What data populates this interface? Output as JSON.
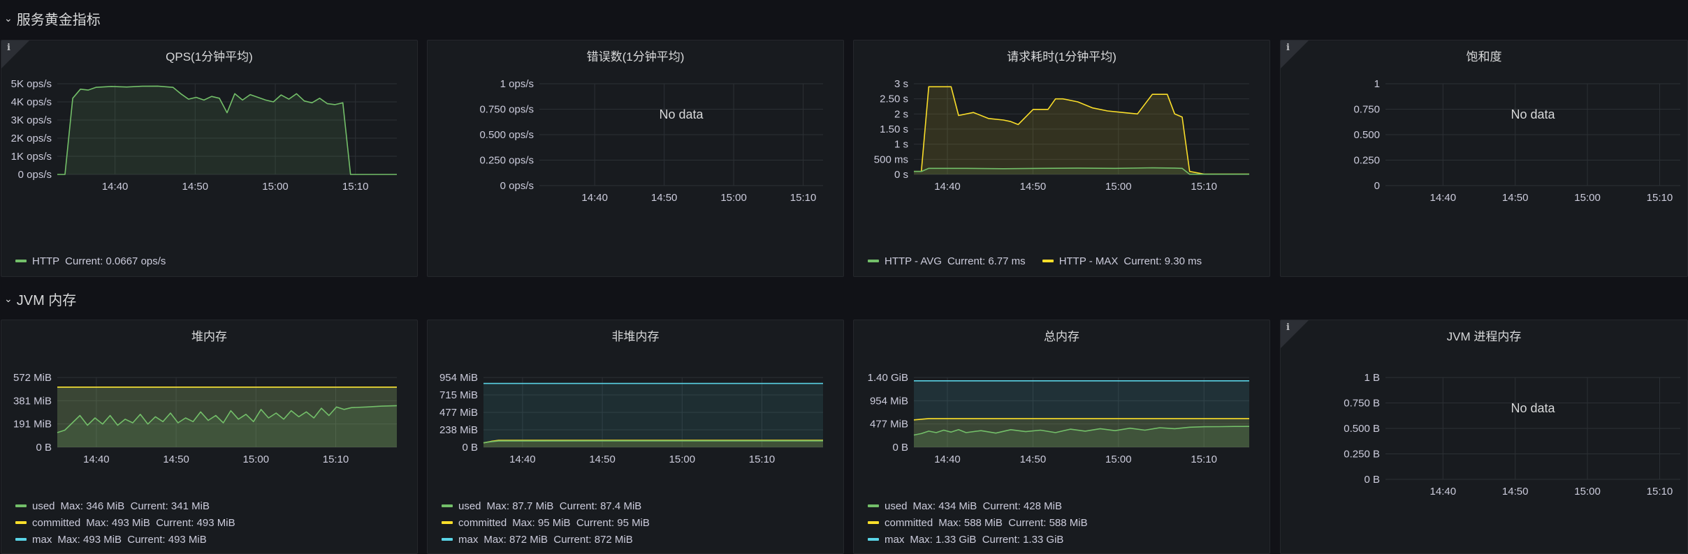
{
  "rows": [
    {
      "title": "服务黄金指标"
    },
    {
      "title": "JVM 内存"
    }
  ],
  "info_icon": "i",
  "panels": [
    {
      "title": "QPS(1分钟平均)",
      "info": true,
      "y_ticks": [
        "5K ops/s",
        "4K ops/s",
        "3K ops/s",
        "2K ops/s",
        "1K ops/s",
        "0 ops/s"
      ],
      "x_ticks": [
        "14:40",
        "14:50",
        "15:00",
        "15:10"
      ],
      "legend": [
        {
          "name": "HTTP",
          "stats": "Current: 0.0667 ops/s",
          "color": "#73bf69"
        }
      ]
    },
    {
      "title": "错误数(1分钟平均)",
      "info": false,
      "y_ticks": [
        "1 ops/s",
        "0.750 ops/s",
        "0.500 ops/s",
        "0.250 ops/s",
        "0 ops/s"
      ],
      "x_ticks": [
        "14:40",
        "14:50",
        "15:00",
        "15:10"
      ],
      "no_data": "No data",
      "legend": []
    },
    {
      "title": "请求耗时(1分钟平均)",
      "info": false,
      "y_ticks": [
        "3 s",
        "2.50 s",
        "2 s",
        "1.50 s",
        "1 s",
        "500 ms",
        "0 s"
      ],
      "x_ticks": [
        "14:40",
        "14:50",
        "15:00",
        "15:10"
      ],
      "legend": [
        {
          "name": "HTTP - AVG",
          "stats": "Current: 6.77 ms",
          "color": "#73bf69"
        },
        {
          "name": "HTTP - MAX",
          "stats": "Current: 9.30 ms",
          "color": "#fade2a"
        }
      ]
    },
    {
      "title": "饱和度",
      "info": true,
      "y_ticks": [
        "1",
        "0.750",
        "0.500",
        "0.250",
        "0"
      ],
      "x_ticks": [
        "14:40",
        "14:50",
        "15:00",
        "15:10"
      ],
      "no_data": "No data",
      "legend": []
    },
    {
      "title": "堆内存",
      "info": false,
      "y_ticks": [
        "572 MiB",
        "381 MiB",
        "191 MiB",
        "0 B"
      ],
      "x_ticks": [
        "14:40",
        "14:50",
        "15:00",
        "15:10"
      ],
      "legend": [
        {
          "name": "used",
          "stats": "Max: 346 MiB  Current: 341 MiB",
          "color": "#73bf69"
        },
        {
          "name": "committed",
          "stats": "Max: 493 MiB  Current: 493 MiB",
          "color": "#fade2a"
        },
        {
          "name": "max",
          "stats": "Max: 493 MiB  Current: 493 MiB",
          "color": "#5ad4e6"
        }
      ]
    },
    {
      "title": "非堆内存",
      "info": false,
      "y_ticks": [
        "954 MiB",
        "715 MiB",
        "477 MiB",
        "238 MiB",
        "0 B"
      ],
      "x_ticks": [
        "14:40",
        "14:50",
        "15:00",
        "15:10"
      ],
      "legend": [
        {
          "name": "used",
          "stats": "Max: 87.7 MiB  Current: 87.4 MiB",
          "color": "#73bf69"
        },
        {
          "name": "committed",
          "stats": "Max: 95 MiB  Current: 95 MiB",
          "color": "#fade2a"
        },
        {
          "name": "max",
          "stats": "Max: 872 MiB  Current: 872 MiB",
          "color": "#5ad4e6"
        }
      ]
    },
    {
      "title": "总内存",
      "info": false,
      "y_ticks": [
        "1.40 GiB",
        "954 MiB",
        "477 MiB",
        "0 B"
      ],
      "x_ticks": [
        "14:40",
        "14:50",
        "15:00",
        "15:10"
      ],
      "legend": [
        {
          "name": "used",
          "stats": "Max: 434 MiB  Current: 428 MiB",
          "color": "#73bf69"
        },
        {
          "name": "committed",
          "stats": "Max: 588 MiB  Current: 588 MiB",
          "color": "#fade2a"
        },
        {
          "name": "max",
          "stats": "Max: 1.33 GiB  Current: 1.33 GiB",
          "color": "#5ad4e6"
        }
      ]
    },
    {
      "title": "JVM 进程内存",
      "info": true,
      "y_ticks": [
        "1 B",
        "0.750 B",
        "0.500 B",
        "0.250 B",
        "0 B"
      ],
      "x_ticks": [
        "14:40",
        "14:50",
        "15:00",
        "15:10"
      ],
      "no_data": "No data",
      "legend": []
    }
  ],
  "chart_data": [
    {
      "type": "area",
      "title": "QPS(1分钟平均)",
      "x_range": [
        "14:32",
        "15:16"
      ],
      "ylim": [
        0,
        5000
      ],
      "y_unit": "ops/s",
      "series": [
        {
          "name": "HTTP",
          "color": "#73bf69",
          "x": [
            "14:32",
            "14:33",
            "14:34",
            "14:35",
            "14:36",
            "14:37",
            "14:39",
            "14:41",
            "14:43",
            "14:45",
            "14:47",
            "14:48",
            "14:49",
            "14:50",
            "14:51",
            "14:52",
            "14:53",
            "14:54",
            "14:55",
            "14:56",
            "14:57",
            "14:58",
            "14:59",
            "15:00",
            "15:01",
            "15:02",
            "15:03",
            "15:04",
            "15:05",
            "15:06",
            "15:07",
            "15:08",
            "15:09",
            "15:10",
            "15:12",
            "15:14",
            "15:16"
          ],
          "values": [
            0,
            0,
            4200,
            4700,
            4650,
            4800,
            4850,
            4820,
            4860,
            4870,
            4800,
            4450,
            4150,
            4250,
            4100,
            4300,
            4200,
            3400,
            4450,
            4100,
            4400,
            4250,
            4100,
            4000,
            4380,
            4150,
            4450,
            4050,
            3950,
            4200,
            3900,
            3850,
            3950,
            0,
            0,
            0,
            0.0667
          ]
        }
      ]
    },
    {
      "type": "line",
      "title": "错误数(1分钟平均)",
      "ylim": [
        0,
        1
      ],
      "series": []
    },
    {
      "type": "area",
      "title": "请求耗时(1分钟平均)",
      "x_range": [
        "14:33",
        "15:18"
      ],
      "ylim": [
        0,
        3
      ],
      "y_unit": "s",
      "series": [
        {
          "name": "HTTP - AVG",
          "color": "#73bf69",
          "x": [
            "14:33",
            "14:34",
            "14:35",
            "14:40",
            "14:45",
            "14:50",
            "14:55",
            "15:00",
            "15:05",
            "15:08",
            "15:09",
            "15:10",
            "15:18"
          ],
          "values": [
            0.1,
            0.1,
            0.2,
            0.2,
            0.19,
            0.2,
            0.21,
            0.2,
            0.22,
            0.21,
            0.2,
            0.0068,
            0.0068
          ]
        },
        {
          "name": "HTTP - MAX",
          "color": "#fade2a",
          "x": [
            "14:33",
            "14:34",
            "14:35",
            "14:38",
            "14:39",
            "14:41",
            "14:43",
            "14:45",
            "14:46",
            "14:47",
            "14:48",
            "14:49",
            "14:51",
            "14:52",
            "14:53",
            "14:55",
            "14:57",
            "14:59",
            "15:01",
            "15:03",
            "15:05",
            "15:07",
            "15:08",
            "15:09",
            "15:10",
            "15:12",
            "15:18"
          ],
          "values": [
            0.1,
            0.1,
            2.9,
            2.9,
            1.95,
            2.05,
            1.85,
            1.8,
            1.75,
            1.65,
            1.9,
            2.15,
            2.15,
            2.5,
            2.5,
            2.4,
            2.2,
            2.1,
            2.05,
            2.0,
            2.65,
            2.65,
            2.0,
            1.9,
            0.1,
            0.0093,
            0.0093
          ]
        }
      ]
    },
    {
      "type": "line",
      "title": "饱和度",
      "ylim": [
        0,
        1
      ],
      "series": []
    },
    {
      "type": "area",
      "title": "堆内存",
      "x_range": [
        "14:33",
        "15:18"
      ],
      "ylim": [
        0,
        572
      ],
      "y_unit": "MiB",
      "series": [
        {
          "name": "used",
          "color": "#73bf69",
          "x": [
            "14:33",
            "14:34",
            "14:35",
            "14:36",
            "14:37",
            "14:38",
            "14:39",
            "14:40",
            "14:41",
            "14:42",
            "14:43",
            "14:44",
            "14:45",
            "14:46",
            "14:47",
            "14:48",
            "14:49",
            "14:50",
            "14:51",
            "14:52",
            "14:53",
            "14:54",
            "14:55",
            "14:56",
            "14:57",
            "14:58",
            "14:59",
            "15:00",
            "15:01",
            "15:02",
            "15:03",
            "15:04",
            "15:05",
            "15:06",
            "15:07",
            "15:08",
            "15:09",
            "15:10",
            "15:11",
            "15:12",
            "15:14",
            "15:16",
            "15:18"
          ],
          "values": [
            120,
            140,
            200,
            260,
            180,
            240,
            190,
            260,
            180,
            230,
            200,
            270,
            190,
            250,
            210,
            280,
            200,
            240,
            210,
            290,
            220,
            260,
            200,
            300,
            230,
            270,
            210,
            310,
            240,
            280,
            230,
            300,
            250,
            290,
            240,
            320,
            260,
            330,
            310,
            325,
            330,
            337,
            341
          ]
        },
        {
          "name": "committed",
          "color": "#fade2a",
          "x": [
            "14:33",
            "15:18"
          ],
          "values": [
            493,
            493
          ]
        },
        {
          "name": "max",
          "color": "#5ad4e6",
          "x": [
            "14:33",
            "15:18"
          ],
          "values": [
            493,
            493
          ]
        }
      ]
    },
    {
      "type": "area",
      "title": "非堆内存",
      "x_range": [
        "14:33",
        "15:18"
      ],
      "ylim": [
        0,
        954
      ],
      "y_unit": "MiB",
      "series": [
        {
          "name": "used",
          "color": "#73bf69",
          "x": [
            "14:33",
            "14:34",
            "14:35",
            "15:18"
          ],
          "values": [
            60,
            75,
            87,
            87.4
          ]
        },
        {
          "name": "committed",
          "color": "#fade2a",
          "x": [
            "14:33",
            "14:34",
            "14:35",
            "15:18"
          ],
          "values": [
            60,
            80,
            95,
            95
          ]
        },
        {
          "name": "max",
          "color": "#5ad4e6",
          "x": [
            "14:33",
            "15:18"
          ],
          "values": [
            872,
            872
          ]
        }
      ]
    },
    {
      "type": "area",
      "title": "总内存",
      "x_range": [
        "14:33",
        "15:18"
      ],
      "ylim": [
        0,
        1430
      ],
      "y_unit": "MiB",
      "series": [
        {
          "name": "used",
          "color": "#73bf69",
          "x": [
            "14:33",
            "14:34",
            "14:35",
            "14:36",
            "14:37",
            "14:38",
            "14:39",
            "14:40",
            "14:42",
            "14:44",
            "14:46",
            "14:48",
            "14:50",
            "14:52",
            "14:54",
            "14:56",
            "14:58",
            "15:00",
            "15:02",
            "15:04",
            "15:06",
            "15:08",
            "15:10",
            "15:12",
            "15:14",
            "15:16",
            "15:18"
          ],
          "values": [
            250,
            280,
            330,
            300,
            350,
            310,
            360,
            300,
            340,
            290,
            360,
            320,
            350,
            300,
            370,
            330,
            380,
            340,
            390,
            350,
            400,
            380,
            410,
            420,
            422,
            426,
            428
          ]
        },
        {
          "name": "committed",
          "color": "#fade2a",
          "x": [
            "14:33",
            "14:35",
            "15:18"
          ],
          "values": [
            560,
            588,
            588
          ]
        },
        {
          "name": "max",
          "color": "#5ad4e6",
          "x": [
            "14:33",
            "15:18"
          ],
          "values": [
            1362,
            1362
          ]
        }
      ]
    },
    {
      "type": "line",
      "title": "JVM 进程内存",
      "ylim": [
        0,
        1
      ],
      "series": []
    }
  ]
}
